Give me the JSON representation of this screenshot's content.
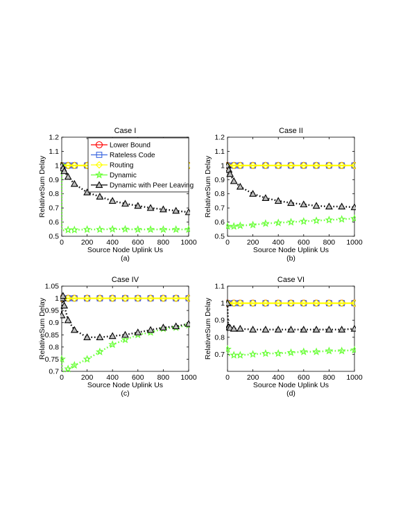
{
  "chart_data": [
    {
      "type": "line",
      "title": "Case I",
      "caption": "(a)",
      "xlabel": "Source Node Uplink Us",
      "ylabel": "RelativeSum Delay",
      "xlim": [
        0,
        1000
      ],
      "ylim": [
        0.5,
        1.2
      ],
      "xticks": [
        0,
        200,
        400,
        600,
        800,
        1000
      ],
      "yticks": [
        0.5,
        0.6,
        0.7,
        0.8,
        0.9,
        1,
        1.1,
        1.2
      ],
      "grid": false,
      "legend": "top-right",
      "series": [
        {
          "name": "Lower Bound",
          "x": [
            0,
            50,
            100,
            200,
            300,
            400,
            500,
            600,
            700,
            800,
            900,
            1000
          ],
          "y": [
            1,
            1,
            1,
            1,
            1,
            1,
            1,
            1,
            1,
            1,
            1,
            1
          ]
        },
        {
          "name": "Rateless Code",
          "x": [
            0,
            50,
            100,
            200,
            300,
            400,
            500,
            600,
            700,
            800,
            900,
            1000
          ],
          "y": [
            1,
            1,
            1,
            1,
            1,
            1,
            1,
            1,
            1,
            1,
            1,
            1
          ]
        },
        {
          "name": "Routing",
          "x": [
            0,
            50,
            100,
            200,
            300,
            400,
            500,
            600,
            700,
            800,
            900,
            1000
          ],
          "y": [
            1,
            1,
            1,
            1,
            1,
            1,
            1,
            1,
            1,
            1,
            1,
            1
          ]
        },
        {
          "name": "Dynamic",
          "x": [
            0,
            1,
            5,
            10,
            20,
            50,
            100,
            200,
            300,
            400,
            500,
            600,
            700,
            800,
            900,
            1000
          ],
          "y": [
            1.0,
            0.56,
            0.545,
            0.54,
            0.545,
            0.545,
            0.545,
            0.548,
            0.548,
            0.55,
            0.55,
            0.548,
            0.548,
            0.548,
            0.548,
            0.548
          ]
        },
        {
          "name": "Dynamic with Peer Leaving",
          "x": [
            0,
            10,
            20,
            50,
            100,
            200,
            300,
            400,
            500,
            600,
            700,
            800,
            900,
            1000
          ],
          "y": [
            1.0,
            0.98,
            0.96,
            0.92,
            0.87,
            0.81,
            0.78,
            0.75,
            0.73,
            0.715,
            0.7,
            0.69,
            0.68,
            0.67
          ]
        }
      ]
    },
    {
      "type": "line",
      "title": "Case II",
      "caption": "(b)",
      "xlabel": "Source Node Uplink Us",
      "ylabel": "RelativeSum Delay",
      "xlim": [
        0,
        1000
      ],
      "ylim": [
        0.5,
        1.2
      ],
      "xticks": [
        0,
        200,
        400,
        600,
        800,
        1000
      ],
      "yticks": [
        0.5,
        0.6,
        0.7,
        0.8,
        0.9,
        1,
        1.1,
        1.2
      ],
      "grid": false,
      "series": [
        {
          "name": "Lower Bound",
          "x": [
            0,
            50,
            100,
            200,
            300,
            400,
            500,
            600,
            700,
            800,
            900,
            1000
          ],
          "y": [
            1,
            1,
            1,
            1,
            1,
            1,
            1,
            1,
            1,
            1,
            1,
            1
          ]
        },
        {
          "name": "Rateless Code",
          "x": [
            0,
            50,
            100,
            200,
            300,
            400,
            500,
            600,
            700,
            800,
            900,
            1000
          ],
          "y": [
            1,
            1,
            1,
            1,
            1,
            1,
            1,
            1,
            1,
            1,
            1,
            1
          ]
        },
        {
          "name": "Routing",
          "x": [
            0,
            50,
            100,
            200,
            300,
            400,
            500,
            600,
            700,
            800,
            900,
            1000
          ],
          "y": [
            1,
            1,
            1,
            1,
            1,
            1,
            1,
            1,
            1,
            1,
            1,
            1
          ]
        },
        {
          "name": "Dynamic",
          "x": [
            0,
            10,
            20,
            50,
            100,
            200,
            300,
            400,
            500,
            600,
            700,
            800,
            900,
            1000
          ],
          "y": [
            0.57,
            0.565,
            0.565,
            0.57,
            0.575,
            0.58,
            0.59,
            0.595,
            0.6,
            0.605,
            0.61,
            0.615,
            0.62,
            0.625
          ]
        },
        {
          "name": "Dynamic with Peer Leaving",
          "x": [
            0,
            10,
            20,
            50,
            100,
            200,
            300,
            400,
            500,
            600,
            700,
            800,
            900,
            1000
          ],
          "y": [
            1.0,
            0.97,
            0.94,
            0.89,
            0.85,
            0.8,
            0.77,
            0.75,
            0.735,
            0.725,
            0.715,
            0.71,
            0.71,
            0.705
          ]
        }
      ]
    },
    {
      "type": "line",
      "title": "Case IV",
      "caption": "(c)",
      "xlabel": "Source Node Uplink Us",
      "ylabel": "RelativeSum Delay",
      "xlim": [
        0,
        1000
      ],
      "ylim": [
        0.7,
        1.05
      ],
      "xticks": [
        0,
        200,
        400,
        600,
        800,
        1000
      ],
      "yticks": [
        0.7,
        0.75,
        0.8,
        0.85,
        0.9,
        0.95,
        1,
        1.05
      ],
      "grid": false,
      "series": [
        {
          "name": "Lower Bound",
          "x": [
            0,
            50,
            100,
            200,
            300,
            400,
            500,
            600,
            700,
            800,
            900,
            1000
          ],
          "y": [
            1,
            1,
            1,
            1,
            1,
            1,
            1,
            1,
            1,
            1,
            1,
            1
          ]
        },
        {
          "name": "Rateless Code",
          "x": [
            0,
            50,
            100,
            200,
            300,
            400,
            500,
            600,
            700,
            800,
            900,
            1000
          ],
          "y": [
            1,
            1,
            1,
            1,
            1,
            1,
            1,
            1,
            1,
            1,
            1,
            1
          ]
        },
        {
          "name": "Routing",
          "x": [
            0,
            50,
            100,
            200,
            300,
            400,
            500,
            600,
            700,
            800,
            900,
            1000
          ],
          "y": [
            1,
            1,
            1,
            1,
            1,
            1,
            1,
            1,
            1,
            1,
            1,
            1
          ]
        },
        {
          "name": "Dynamic",
          "x": [
            0,
            5,
            10,
            20,
            50,
            100,
            200,
            300,
            400,
            500,
            600,
            700,
            800,
            900,
            1000
          ],
          "y": [
            0.75,
            0.705,
            0.7,
            0.7,
            0.71,
            0.725,
            0.75,
            0.78,
            0.81,
            0.83,
            0.85,
            0.86,
            0.875,
            0.88,
            0.89
          ]
        },
        {
          "name": "Dynamic with Peer Leaving",
          "x": [
            0,
            5,
            10,
            20,
            50,
            100,
            200,
            300,
            400,
            500,
            600,
            700,
            800,
            900,
            1000
          ],
          "y": [
            0.93,
            1.0,
            1.01,
            0.97,
            0.91,
            0.87,
            0.84,
            0.84,
            0.845,
            0.85,
            0.86,
            0.87,
            0.88,
            0.885,
            0.895
          ]
        }
      ]
    },
    {
      "type": "line",
      "title": "Case VI",
      "caption": "(d)",
      "xlabel": "Source Node Uplink Us",
      "ylabel": "RelativeSum Delay",
      "xlim": [
        0,
        1000
      ],
      "ylim": [
        0.6,
        1.1
      ],
      "xticks": [
        0,
        200,
        400,
        600,
        800,
        1000
      ],
      "yticks": [
        0.7,
        0.8,
        0.9,
        1,
        1.1
      ],
      "grid": false,
      "series": [
        {
          "name": "Lower Bound",
          "x": [
            0,
            50,
            100,
            200,
            300,
            400,
            500,
            600,
            700,
            800,
            900,
            1000
          ],
          "y": [
            1,
            1,
            1,
            1,
            1,
            1,
            1,
            1,
            1,
            1,
            1,
            1
          ]
        },
        {
          "name": "Rateless Code",
          "x": [
            0,
            50,
            100,
            200,
            300,
            400,
            500,
            600,
            700,
            800,
            900,
            1000
          ],
          "y": [
            1,
            1,
            1,
            1,
            1,
            1,
            1,
            1,
            1,
            1,
            1,
            1
          ]
        },
        {
          "name": "Routing",
          "x": [
            0,
            50,
            100,
            200,
            300,
            400,
            500,
            600,
            700,
            800,
            900,
            1000
          ],
          "y": [
            1,
            1,
            1,
            1,
            1,
            1,
            1,
            1,
            1,
            1,
            1,
            1
          ]
        },
        {
          "name": "Dynamic",
          "x": [
            0,
            5,
            10,
            20,
            50,
            100,
            200,
            300,
            400,
            500,
            600,
            700,
            800,
            900,
            1000
          ],
          "y": [
            0.73,
            0.7,
            0.695,
            0.695,
            0.695,
            0.695,
            0.7,
            0.705,
            0.705,
            0.71,
            0.715,
            0.715,
            0.72,
            0.72,
            0.725
          ]
        },
        {
          "name": "Dynamic with Peer Leaving",
          "x": [
            0,
            5,
            10,
            20,
            50,
            100,
            200,
            300,
            400,
            500,
            600,
            700,
            800,
            900,
            1000
          ],
          "y": [
            1.0,
            0.86,
            0.86,
            0.855,
            0.85,
            0.85,
            0.845,
            0.845,
            0.845,
            0.845,
            0.845,
            0.845,
            0.845,
            0.845,
            0.85
          ]
        }
      ]
    }
  ],
  "colors": {
    "Lower Bound": "#ff0000",
    "Rateless Code": "#3a66e0",
    "Routing": "#ffff00",
    "Dynamic": "#66ff33",
    "Dynamic with Peer Leaving": "#000000"
  },
  "markers": {
    "Lower Bound": "circle",
    "Rateless Code": "square",
    "Routing": "diamond",
    "Dynamic": "star",
    "Dynamic with Peer Leaving": "triangle"
  }
}
